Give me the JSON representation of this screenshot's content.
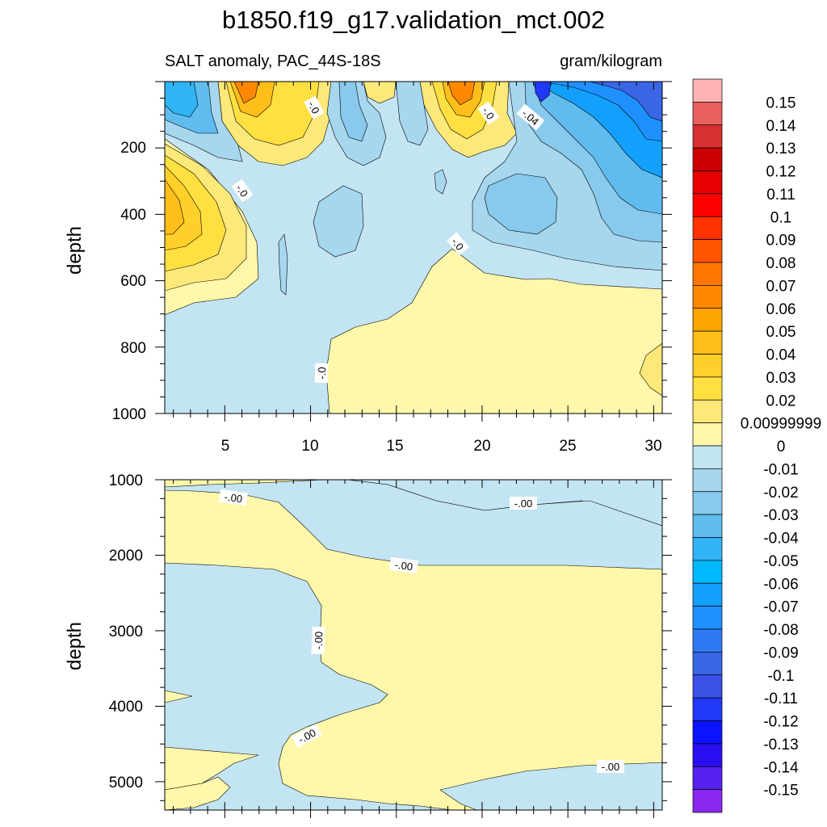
{
  "chart_data": {
    "type": "contour",
    "title": "b1850.f19_g17.validation_mct.002",
    "subtitle_left": "SALT anomaly, PAC_44S-18S",
    "subtitle_right": "gram/kilogram",
    "xlabel": "",
    "colorbar": {
      "levels": [
        "0.15",
        "0.14",
        "0.13",
        "0.12",
        "0.11",
        "0.1",
        "0.09",
        "0.08",
        "0.07",
        "0.06",
        "0.05",
        "0.04",
        "0.03",
        "0.02",
        "0.00999999",
        "0",
        "-0.01",
        "-0.02",
        "-0.03",
        "-0.04",
        "-0.05",
        "-0.06",
        "-0.07",
        "-0.08",
        "-0.09",
        "-0.1",
        "-0.11",
        "-0.12",
        "-0.13",
        "-0.14",
        "-0.15"
      ],
      "colors": [
        "#ffb3b3",
        "#e86060",
        "#d83030",
        "#cc0000",
        "#e60000",
        "#ff0000",
        "#ff3300",
        "#ff5500",
        "#ff7700",
        "#ff8800",
        "#ffa500",
        "#ffbe1a",
        "#ffd02a",
        "#ffe040",
        "#fde87a",
        "#fff7aa",
        "#c3e4f2",
        "#a6d7ef",
        "#88c9ec",
        "#60bcee",
        "#30b4f6",
        "#00baff",
        "#12a0fc",
        "#1e90ff",
        "#2f7af2",
        "#3a66e6",
        "#3a50e6",
        "#2038f8",
        "#0a14ff",
        "#2a10f0",
        "#5520f0",
        "#8a28f0"
      ]
    },
    "panels": [
      {
        "name": "upper",
        "ylabel": "depth",
        "x_ticks": [
          "5",
          "10",
          "15",
          "20",
          "25",
          "30"
        ],
        "y_ticks": [
          "200",
          "400",
          "600",
          "800",
          "1000"
        ],
        "xlim": [
          1.5,
          30.5
        ],
        "ylim": [
          1000,
          0
        ],
        "contour_labels": [
          "-.0",
          "-.0",
          "-.0",
          "-.04",
          "-.0",
          "-.0",
          "-.0"
        ]
      },
      {
        "name": "lower",
        "ylabel": "depth",
        "y_ticks": [
          "1000",
          "2000",
          "3000",
          "4000",
          "5000"
        ],
        "xlim": [
          1.5,
          30.5
        ],
        "ylim": [
          5375,
          1000
        ],
        "contour_labels": [
          "-.00",
          "-.00",
          "-.00",
          "-.00",
          "-.00",
          "-.00"
        ]
      }
    ]
  }
}
